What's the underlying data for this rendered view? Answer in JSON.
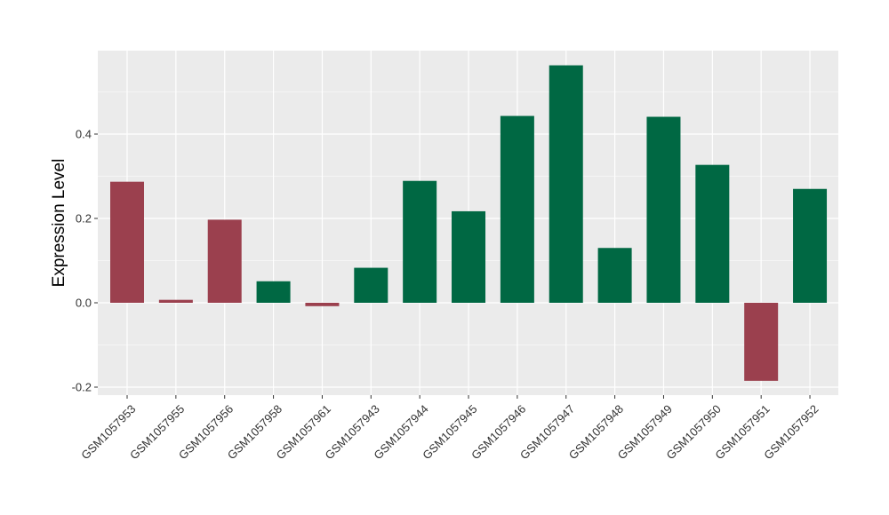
{
  "chart_data": {
    "type": "bar",
    "ylabel": "Expression Level",
    "xlabel": "",
    "ylim": [
      -0.22,
      0.605
    ],
    "yticks": [
      -0.2,
      0.0,
      0.2,
      0.4
    ],
    "ytick_labels": [
      "-0.2",
      "0.0",
      "0.2",
      "0.4"
    ],
    "grid": true,
    "colors": {
      "positive": "#006843",
      "negative": "#9b404e",
      "panel": "#ebebeb",
      "grid": "#ffffff"
    },
    "categories": [
      "GSM1057953",
      "GSM1057955",
      "GSM1057956",
      "GSM1057958",
      "GSM1057961",
      "GSM1057943",
      "GSM1057944",
      "GSM1057945",
      "GSM1057946",
      "GSM1057947",
      "GSM1057948",
      "GSM1057949",
      "GSM1057950",
      "GSM1057951",
      "GSM1057952"
    ],
    "values": [
      0.287,
      0.007,
      0.197,
      0.051,
      -0.008,
      0.083,
      0.289,
      0.217,
      0.443,
      0.563,
      0.13,
      0.441,
      0.327,
      -0.185,
      0.27
    ],
    "groups": [
      "negative",
      "negative",
      "negative",
      "positive",
      "negative",
      "positive",
      "positive",
      "positive",
      "positive",
      "positive",
      "positive",
      "positive",
      "positive",
      "negative",
      "positive"
    ]
  }
}
